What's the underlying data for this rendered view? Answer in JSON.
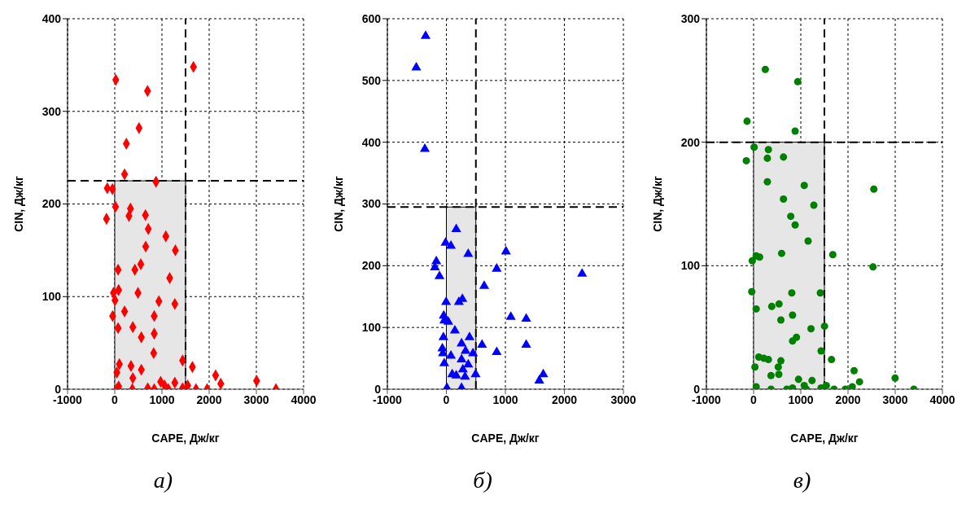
{
  "chart_data": [
    {
      "type": "scatter",
      "xlabel": "CAPE, Дж/кг",
      "ylabel": "CIN, Дж/кг",
      "annotations": [
        "а)"
      ],
      "marker": "diamond",
      "grid": true,
      "xlim": [
        -1000,
        4000
      ],
      "xticks": [
        -1000,
        0,
        1000,
        2000,
        3000,
        4000
      ],
      "ylim": [
        0,
        400
      ],
      "yticks": [
        0,
        100,
        200,
        300,
        400
      ],
      "series": [
        {
          "color": "#ff0000",
          "x": [
            1667,
            22,
            694,
            514,
            246,
            208,
            874,
            -158,
            -49,
            -175,
            16,
            333,
            301,
            650,
            710,
            1082,
            1284,
            656,
            552,
            426,
            71,
            1164,
            82,
            -27,
            492,
            5,
            934,
            1273,
            208,
            -44,
            836,
            71,
            383,
            836,
            563,
            825,
            1437,
            1645,
            98,
            44,
            344,
            563,
            383,
            2137,
            2246,
            3005,
            3415,
            82,
            44,
            372,
            699,
            836,
            973,
            1055,
            1137,
            1273,
            1437,
            1546,
            1721,
            1956
          ],
          "values": [
            348,
            334,
            322,
            282,
            265,
            232,
            224,
            217,
            216,
            184,
            197,
            195,
            187,
            188,
            173,
            165,
            150,
            154,
            135,
            129,
            129,
            120,
            107,
            104,
            104,
            96,
            95,
            92,
            84,
            79,
            79,
            66,
            67,
            60,
            56,
            39,
            31,
            24,
            27,
            18,
            25,
            21,
            12,
            15,
            6,
            9,
            0,
            3,
            0,
            0,
            1,
            0,
            8,
            4,
            0,
            7,
            1,
            4,
            0,
            0
          ]
        }
      ],
      "ref_lines": [
        {
          "axis": "x",
          "value": 1500,
          "line_style": "dashed"
        },
        {
          "axis": "y",
          "value": 225,
          "line_style": "dashed"
        }
      ],
      "bands": [
        {
          "axis": "x",
          "from": 0,
          "to": 1500,
          "color": "#e6e6e6"
        }
      ]
    },
    {
      "type": "scatter",
      "xlabel": "CAPE, Дж/кг",
      "ylabel": "CIN, Дж/кг",
      "annotations": [
        "б)"
      ],
      "marker": "triangle",
      "grid": true,
      "xlim": [
        -1000,
        3000
      ],
      "xticks": [
        -1000,
        0,
        1000,
        2000,
        3000
      ],
      "ylim": [
        0,
        600
      ],
      "yticks": [
        0,
        100,
        200,
        300,
        400,
        500,
        600
      ],
      "series": [
        {
          "color": "#0000ff",
          "x": [
            -352,
            -510,
            -365,
            167,
            -14,
            77,
            370,
            -171,
            -194,
            -117,
            1010,
            853,
            2300,
            641,
            -5,
            212,
            271,
            -45,
            -36,
            32,
            144,
            1092,
            1353,
            -50,
            392,
            257,
            604,
            1353,
            -68,
            -59,
            77,
            325,
            451,
            853,
            257,
            -36,
            370,
            280,
            99,
            167,
            316,
            496,
            1642,
            1574,
            9,
            257
          ],
          "values": [
            572,
            521,
            389,
            259,
            237,
            232,
            219,
            207,
            197,
            183,
            223,
            195,
            187,
            167,
            141,
            141,
            146,
            119,
            111,
            109,
            95,
            117,
            114,
            84,
            84,
            74,
            72,
            72,
            66,
            58,
            54,
            62,
            58,
            60,
            48,
            42,
            40,
            32,
            24,
            22,
            20,
            24,
            24,
            14,
            2,
            2
          ]
        }
      ],
      "ref_lines": [
        {
          "axis": "x",
          "value": 500,
          "line_style": "dashed"
        },
        {
          "axis": "y",
          "value": 295,
          "line_style": "dashed"
        }
      ],
      "bands": [
        {
          "axis": "x",
          "from": 0,
          "to": 500,
          "color": "#e6e6e6"
        }
      ]
    },
    {
      "type": "scatter",
      "xlabel": "CAPE, Дж/кг",
      "ylabel": "CIN, Дж/кг",
      "annotations": [
        "в)"
      ],
      "marker": "circle",
      "grid": true,
      "xlim": [
        -1000,
        4000
      ],
      "xticks": [
        -1000,
        0,
        1000,
        2000,
        3000,
        4000
      ],
      "ylim": [
        0,
        300
      ],
      "yticks": [
        0,
        100,
        200,
        300
      ],
      "series": [
        {
          "color": "#008000",
          "x": [
            248,
            935,
            -138,
            880,
            11,
            314,
            -154,
            292,
            633,
            292,
            1073,
            2547,
            633,
            1276,
            787,
            880,
            1155,
            594,
            1678,
            55,
            127,
            -28,
            2530,
            -39,
            809,
            1414,
            55,
            385,
            539,
            825,
            578,
            1502,
            1216,
            908,
            825,
            1430,
            1650,
            110,
            220,
            314,
            578,
            523,
            28,
            369,
            534,
            2129,
            2244,
            2998,
            3394,
            55,
            369,
            704,
            825,
            952,
            1073,
            1238,
            1117,
            1430,
            1540,
            1705,
            1942,
            2090
          ],
          "values": [
            259,
            249,
            217,
            209,
            196,
            194,
            185,
            187,
            188,
            168,
            165,
            162,
            154,
            149,
            140,
            133,
            120,
            110,
            109,
            108,
            107,
            104,
            99,
            79,
            78,
            78,
            65,
            67,
            69,
            60,
            56,
            51,
            49,
            42,
            39,
            31,
            24,
            26,
            25,
            24,
            23,
            18,
            18,
            11,
            12,
            15,
            6,
            9,
            0,
            2,
            0,
            0,
            1,
            8,
            3,
            7,
            0,
            1,
            3,
            0,
            0,
            2
          ]
        }
      ],
      "ref_lines": [
        {
          "axis": "x",
          "value": 1500,
          "line_style": "dashed"
        },
        {
          "axis": "y",
          "value": 200,
          "line_style": "dashed"
        }
      ],
      "bands": [
        {
          "axis": "x",
          "from": 0,
          "to": 1500,
          "color": "#e6e6e6"
        }
      ]
    }
  ]
}
